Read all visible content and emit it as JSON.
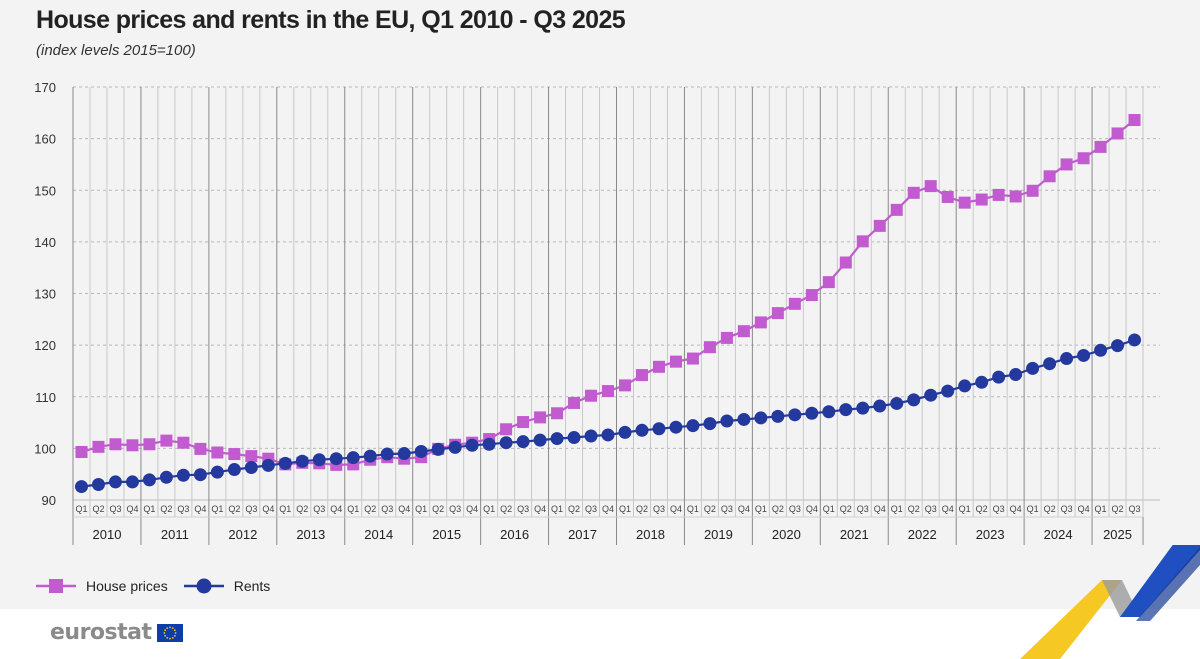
{
  "title": "House prices and rents in the EU, Q1 2010 - Q3 2025",
  "subtitle": "(index levels 2015=100)",
  "chart_data": {
    "type": "line",
    "title": "House prices and rents in the EU, Q1 2010 - Q3 2025",
    "subtitle": "(index levels 2015=100)",
    "xlabel": "",
    "ylabel": "",
    "ylim": [
      90,
      170
    ],
    "yticks": [
      "170",
      "160",
      "150",
      "140",
      "130",
      "120",
      "110",
      "100",
      "90"
    ],
    "ytick_values": [
      170,
      160,
      150,
      140,
      130,
      120,
      110,
      100,
      90
    ],
    "grid": true,
    "legend_position": "bottom-left",
    "quarter_labels": [
      "Q1",
      "Q2",
      "Q3",
      "Q4"
    ],
    "years": [
      "2010",
      "2011",
      "2012",
      "2013",
      "2014",
      "2015",
      "2016",
      "2017",
      "2018",
      "2019",
      "2020",
      "2021",
      "2022",
      "2023",
      "2024",
      "2025"
    ],
    "x": [
      "2010Q1",
      "2010Q2",
      "2010Q3",
      "2010Q4",
      "2011Q1",
      "2011Q2",
      "2011Q3",
      "2011Q4",
      "2012Q1",
      "2012Q2",
      "2012Q3",
      "2012Q4",
      "2013Q1",
      "2013Q2",
      "2013Q3",
      "2013Q4",
      "2014Q1",
      "2014Q2",
      "2014Q3",
      "2014Q4",
      "2015Q1",
      "2015Q2",
      "2015Q3",
      "2015Q4",
      "2016Q1",
      "2016Q2",
      "2016Q3",
      "2016Q4",
      "2017Q1",
      "2017Q2",
      "2017Q3",
      "2017Q4",
      "2018Q1",
      "2018Q2",
      "2018Q3",
      "2018Q4",
      "2019Q1",
      "2019Q2",
      "2019Q3",
      "2019Q4",
      "2020Q1",
      "2020Q2",
      "2020Q3",
      "2020Q4",
      "2021Q1",
      "2021Q2",
      "2021Q3",
      "2021Q4",
      "2022Q1",
      "2022Q2",
      "2022Q3",
      "2022Q4",
      "2023Q1",
      "2023Q2",
      "2023Q3",
      "2023Q4",
      "2024Q1",
      "2024Q2",
      "2024Q3",
      "2024Q4",
      "2025Q1",
      "2025Q2",
      "2025Q3"
    ],
    "series": [
      {
        "name": "House prices",
        "color": "#c15bcf",
        "marker": "square",
        "values": [
          99.3,
          100.3,
          100.8,
          100.6,
          100.8,
          101.5,
          101.1,
          99.9,
          99.2,
          98.9,
          98.5,
          98.0,
          96.9,
          97.2,
          97.1,
          96.8,
          96.9,
          97.8,
          98.3,
          98.0,
          98.3,
          99.9,
          100.7,
          101.1,
          101.8,
          103.7,
          105.1,
          106.0,
          106.8,
          108.8,
          110.2,
          111.1,
          112.2,
          114.2,
          115.8,
          116.8,
          117.4,
          119.6,
          121.4,
          122.7,
          124.4,
          126.2,
          128.0,
          129.7,
          132.2,
          136.0,
          140.1,
          143.1,
          146.2,
          149.5,
          150.8,
          148.7,
          147.6,
          148.2,
          149.1,
          148.8,
          149.9,
          152.7,
          155.0,
          156.2,
          158.4,
          161.0,
          163.6
        ]
      },
      {
        "name": "Rents",
        "color": "#24399e",
        "marker": "circle",
        "values": [
          92.6,
          93.0,
          93.5,
          93.5,
          93.9,
          94.4,
          94.8,
          94.9,
          95.4,
          95.9,
          96.3,
          96.7,
          97.1,
          97.5,
          97.8,
          98.0,
          98.2,
          98.5,
          98.9,
          99.0,
          99.4,
          99.8,
          100.2,
          100.6,
          100.8,
          101.1,
          101.3,
          101.6,
          101.9,
          102.1,
          102.4,
          102.6,
          103.1,
          103.5,
          103.8,
          104.1,
          104.4,
          104.8,
          105.3,
          105.6,
          105.9,
          106.2,
          106.5,
          106.8,
          107.1,
          107.5,
          107.8,
          108.2,
          108.7,
          109.4,
          110.3,
          111.1,
          112.1,
          112.8,
          113.8,
          114.3,
          115.5,
          116.4,
          117.4,
          118.0,
          119.0,
          119.9,
          121.0
        ]
      }
    ]
  },
  "legend": {
    "house_prices": "House prices",
    "rents": "Rents"
  },
  "branding": {
    "logo_text": "eurostat",
    "accent_yellow": "#f5c518",
    "accent_blue": "#1f4fc1",
    "flag_blue": "#0d3ea8"
  }
}
